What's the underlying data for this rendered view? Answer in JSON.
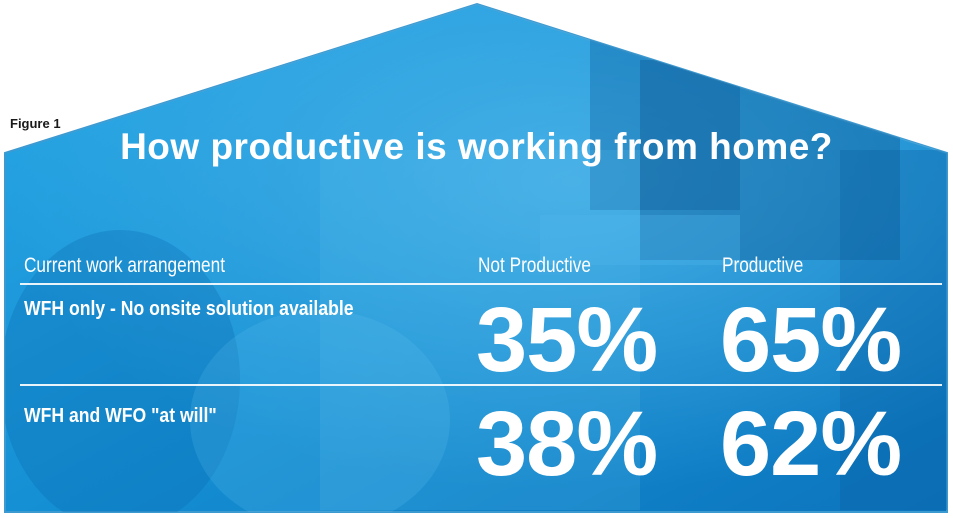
{
  "figure_label": "Figure 1",
  "colors": {
    "background_blue": "#1596d6",
    "background_dark": "#0a70b4",
    "text": "#ffffff",
    "border": "#3d9ad1"
  },
  "chart_data": {
    "type": "table",
    "title": "How productive is working from home?",
    "columns": [
      "Current work arrangement",
      "Not Productive",
      "Productive"
    ],
    "rows": [
      {
        "label": "WFH only - No onsite solution available",
        "not_productive": "35%",
        "productive": "65%"
      },
      {
        "label": "WFH and WFO \"at will\"",
        "not_productive": "38%",
        "productive": "62%"
      }
    ]
  }
}
